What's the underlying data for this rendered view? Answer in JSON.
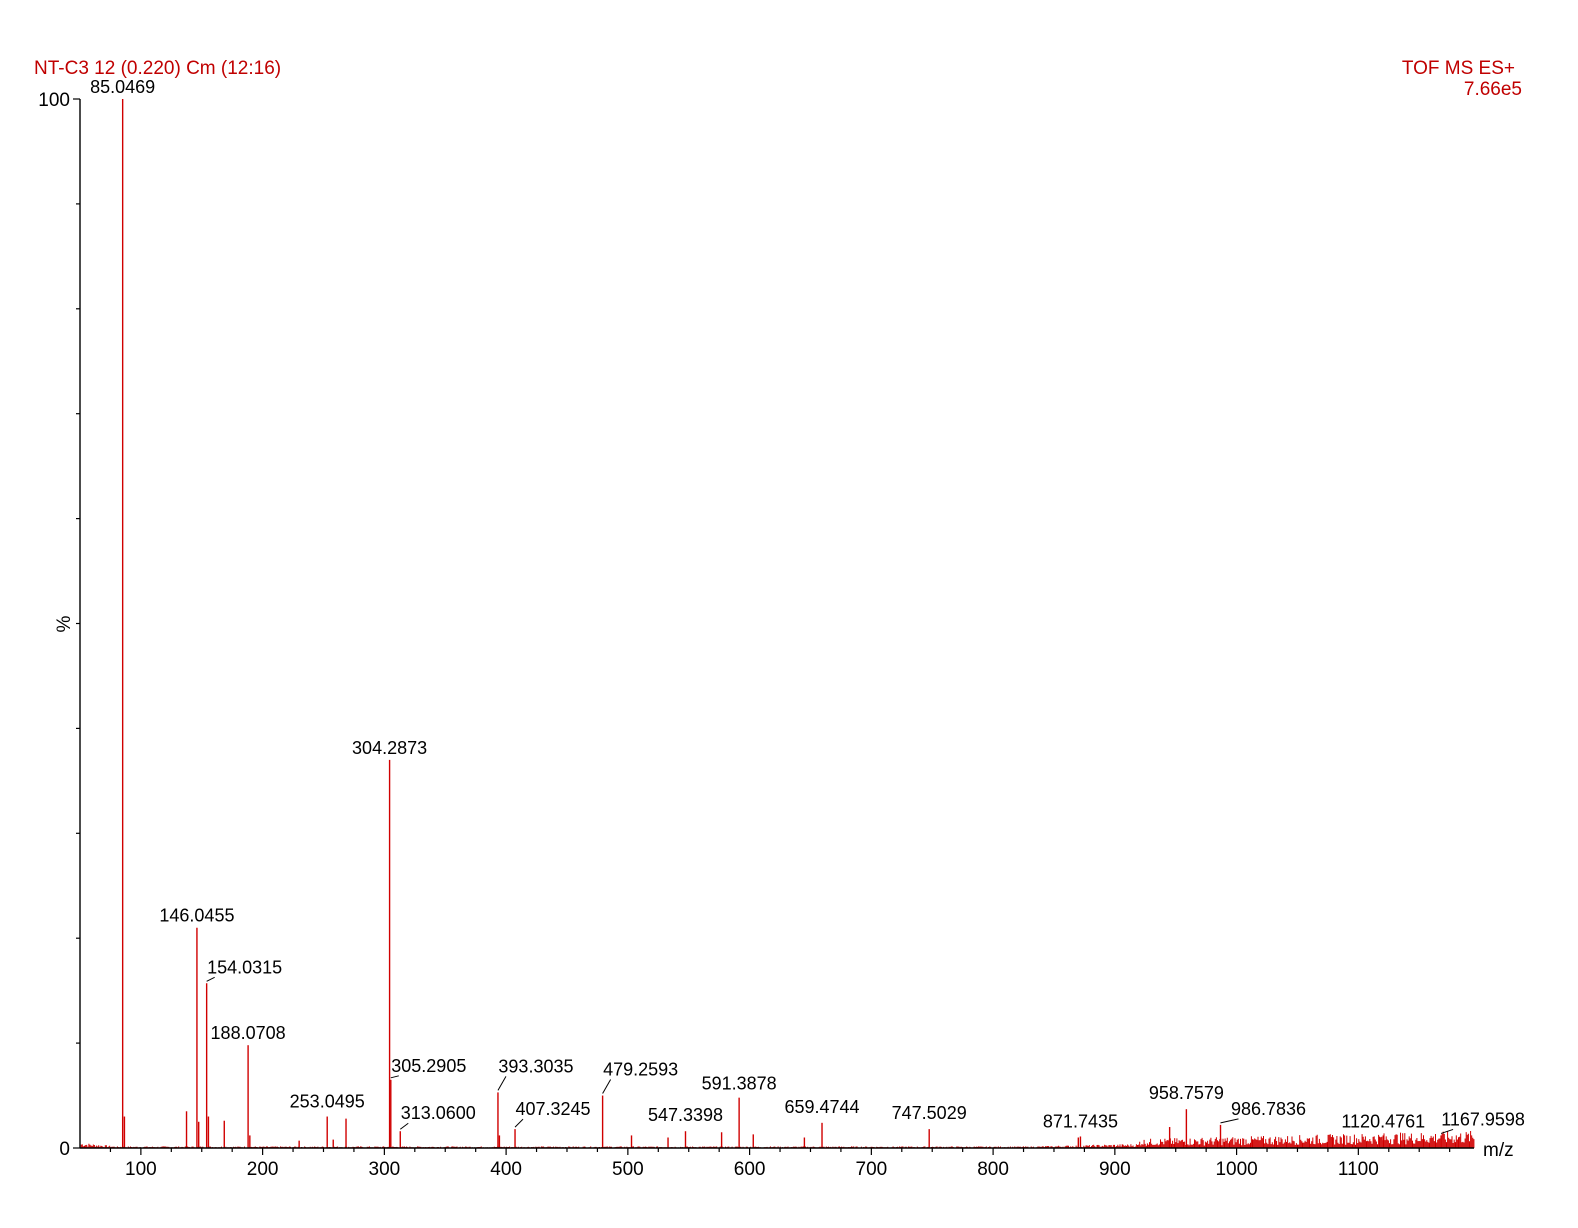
{
  "header": {
    "sample": "NT-C3 12 (0.220) Cm (12:16)",
    "mode": "TOF MS ES+",
    "intensity": "7.66e5"
  },
  "chart_data": {
    "type": "bar",
    "title": "",
    "xlabel": "m/z",
    "ylabel": "%",
    "xlim": [
      50,
      1195
    ],
    "ylim": [
      0,
      100
    ],
    "x_ticks": [
      100,
      200,
      300,
      400,
      500,
      600,
      700,
      800,
      900,
      1000,
      1100
    ],
    "y_ticks": [
      0,
      100
    ],
    "colors": {
      "spectrum": "#d00000",
      "header": "#c00000"
    },
    "labeled_peaks": [
      {
        "mz": "85.0469",
        "x": 85.0469,
        "y": 100
      },
      {
        "mz": "146.0455",
        "x": 146.0455,
        "y": 21
      },
      {
        "mz": "154.0315",
        "x": 154.0315,
        "y": 15.7
      },
      {
        "mz": "188.0708",
        "x": 188.0708,
        "y": 9.8
      },
      {
        "mz": "253.0495",
        "x": 253.0495,
        "y": 3.0
      },
      {
        "mz": "304.2873",
        "x": 304.2873,
        "y": 37
      },
      {
        "mz": "305.2905",
        "x": 305.2905,
        "y": 6.5
      },
      {
        "mz": "313.0600",
        "x": 313.06,
        "y": 1.6
      },
      {
        "mz": "393.3035",
        "x": 393.3035,
        "y": 5.3
      },
      {
        "mz": "407.3245",
        "x": 407.3245,
        "y": 1.8
      },
      {
        "mz": "479.2593",
        "x": 479.2593,
        "y": 5.0
      },
      {
        "mz": "547.3398",
        "x": 547.3398,
        "y": 1.6
      },
      {
        "mz": "591.3878",
        "x": 591.3878,
        "y": 4.8
      },
      {
        "mz": "659.4744",
        "x": 659.4744,
        "y": 2.4
      },
      {
        "mz": "747.5029",
        "x": 747.5029,
        "y": 1.8
      },
      {
        "mz": "871.7435",
        "x": 871.7435,
        "y": 1.1
      },
      {
        "mz": "958.7579",
        "x": 958.7579,
        "y": 3.7
      },
      {
        "mz": "986.7836",
        "x": 986.7836,
        "y": 2.2
      },
      {
        "mz": "1120.4761",
        "x": 1120.4761,
        "y": 1.2
      },
      {
        "mz": "1167.9598",
        "x": 1167.9598,
        "y": 1.2
      }
    ],
    "minor_peaks": [
      {
        "x": 86.5,
        "y": 3.0
      },
      {
        "x": 137.5,
        "y": 3.5
      },
      {
        "x": 147.5,
        "y": 2.5
      },
      {
        "x": 155.5,
        "y": 3.0
      },
      {
        "x": 168.5,
        "y": 2.6
      },
      {
        "x": 189.5,
        "y": 1.2
      },
      {
        "x": 268.5,
        "y": 2.8
      },
      {
        "x": 258.0,
        "y": 0.8
      },
      {
        "x": 230.0,
        "y": 0.7
      },
      {
        "x": 394.5,
        "y": 1.2
      },
      {
        "x": 503.0,
        "y": 1.2
      },
      {
        "x": 533.0,
        "y": 1.0
      },
      {
        "x": 577.0,
        "y": 1.5
      },
      {
        "x": 603.0,
        "y": 1.3
      },
      {
        "x": 645.0,
        "y": 1.0
      },
      {
        "x": 945.0,
        "y": 2.0
      },
      {
        "x": 870.0,
        "y": 1.0
      }
    ]
  }
}
